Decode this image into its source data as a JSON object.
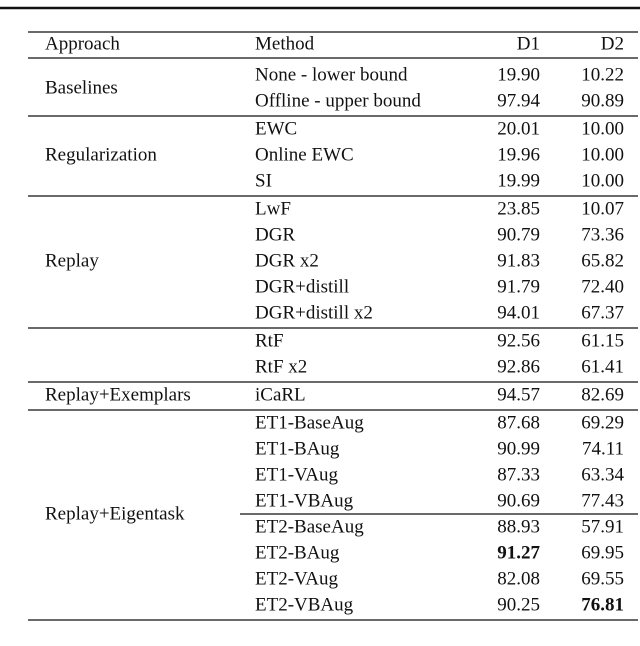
{
  "table": {
    "header": [
      "Approach",
      "Method",
      "D1",
      "D2"
    ],
    "groups": [
      {
        "approach": "Baselines",
        "rows": [
          {
            "cells": [
              "None - lower bound",
              "19.90",
              "10.22"
            ]
          },
          {
            "cells": [
              "Offline - upper bound",
              "97.94",
              "90.89"
            ]
          }
        ]
      },
      {
        "approach": "Regularization",
        "rows": [
          {
            "cells": [
              "EWC",
              "20.01",
              "10.00"
            ]
          },
          {
            "cells": [
              "Online EWC",
              "19.96",
              "10.00"
            ]
          },
          {
            "cells": [
              "SI",
              "19.99",
              "10.00"
            ]
          }
        ]
      },
      {
        "approach": "Replay",
        "rows": [
          {
            "cells": [
              "LwF",
              "23.85",
              "10.07"
            ]
          },
          {
            "cells": [
              "DGR",
              "90.79",
              "73.36"
            ]
          },
          {
            "cells": [
              "DGR x2",
              "91.83",
              "65.82"
            ]
          },
          {
            "cells": [
              "DGR+distill",
              "91.79",
              "72.40"
            ]
          },
          {
            "cells": [
              "DGR+distill x2",
              "94.01",
              "67.37"
            ]
          }
        ]
      },
      {
        "rows": [
          {
            "cells": [
              "RtF",
              "92.56",
              "61.15"
            ]
          },
          {
            "cells": [
              "RtF x2",
              "92.86",
              "61.41"
            ]
          }
        ]
      },
      {
        "approach": "Replay+Exemplars",
        "rows": [
          {
            "cells": [
              "iCaRL",
              "94.57",
              "82.69"
            ]
          }
        ]
      },
      {
        "approach": "Replay+Eigentask",
        "split_after": 3,
        "rows": [
          {
            "cells": [
              "ET1-BaseAug",
              "87.68",
              "69.29"
            ]
          },
          {
            "cells": [
              "ET1-BAug",
              "90.99",
              "74.11"
            ]
          },
          {
            "cells": [
              "ET1-VAug",
              "87.33",
              "63.34"
            ]
          },
          {
            "cells": [
              "ET1-VBAug",
              "90.69",
              "77.43"
            ]
          },
          {
            "cells": [
              "ET2-BaseAug",
              "88.93",
              "57.91"
            ]
          },
          {
            "cells": [
              "ET2-BAug",
              "91.27",
              "69.95"
            ],
            "bold": [
              1
            ]
          },
          {
            "cells": [
              "ET2-VAug",
              "82.08",
              "69.55"
            ]
          },
          {
            "cells": [
              "ET2-VBAug",
              "90.25",
              "76.81"
            ],
            "bold": [
              2
            ]
          }
        ]
      }
    ]
  }
}
